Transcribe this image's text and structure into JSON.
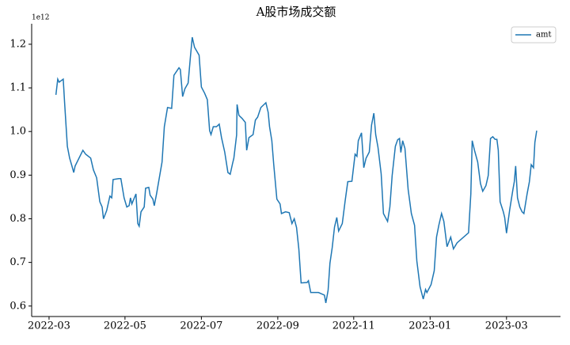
{
  "chart_data": {
    "type": "line",
    "title": "A股市场成交额",
    "y_offset_label": "1e12",
    "x": [
      2022.182,
      2022.186,
      2022.189,
      2022.198,
      2022.201,
      2022.207,
      2022.212,
      2022.217,
      2022.221,
      2022.224,
      2022.241,
      2022.247,
      2022.258,
      2022.264,
      2022.271,
      2022.278,
      2022.283,
      2022.286,
      2022.293,
      2022.3,
      2022.304,
      2022.307,
      2022.319,
      2022.324,
      2022.331,
      2022.337,
      2022.342,
      2022.345,
      2022.348,
      2022.357,
      2022.361,
      2022.364,
      2022.368,
      2022.375,
      2022.378,
      2022.385,
      2022.388,
      2022.394,
      2022.397,
      2022.402,
      2022.414,
      2022.419,
      2022.426,
      2022.435,
      2022.44,
      2022.451,
      2022.454,
      2022.459,
      2022.464,
      2022.471,
      2022.476,
      2022.48,
      2022.485,
      2022.495,
      2022.5,
      2022.507,
      2022.513,
      2022.518,
      2022.521,
      2022.526,
      2022.533,
      2022.539,
      2022.544,
      2022.551,
      2022.558,
      2022.563,
      2022.568,
      2022.571,
      2022.577,
      2022.578,
      2022.582,
      2022.589,
      2022.596,
      2022.599,
      2022.604,
      2022.613,
      2022.618,
      2022.623,
      2022.63,
      2022.635,
      2022.641,
      2022.646,
      2022.649,
      2022.654,
      2022.658,
      2022.665,
      2022.672,
      2022.675,
      2022.684,
      2022.692,
      2022.698,
      2022.703,
      2022.708,
      2022.713,
      2022.718,
      2022.731,
      2022.734,
      2022.739,
      2022.756,
      2022.769,
      2022.772,
      2022.777,
      2022.781,
      2022.786,
      2022.791,
      2022.796,
      2022.8,
      2022.808,
      2022.814,
      2022.82,
      2022.829,
      2022.836,
      2022.84,
      2022.843,
      2022.85,
      2022.855,
      2022.86,
      2022.867,
      2022.872,
      2022.877,
      2022.881,
      2022.886,
      2022.893,
      2022.898,
      2022.907,
      2022.912,
      2022.917,
      2022.924,
      2022.929,
      2022.933,
      2022.936,
      2022.94,
      2022.945,
      2022.952,
      2022.959,
      2022.966,
      2022.971,
      2022.978,
      2022.985,
      2022.99,
      2022.993,
      2023.002,
      2023.009,
      2023.014,
      2023.019,
      2023.025,
      2023.03,
      2023.037,
      2023.045,
      2023.051,
      2023.059,
      2023.084,
      2023.089,
      2023.092,
      2023.097,
      2023.104,
      2023.11,
      2023.115,
      2023.122,
      2023.127,
      2023.132,
      2023.137,
      2023.142,
      2023.146,
      2023.149,
      2023.153,
      2023.16,
      2023.163,
      2023.167,
      2023.174,
      2023.181,
      2023.184,
      2023.187,
      2023.191,
      2023.196,
      2023.201,
      2023.205,
      2023.212,
      2023.217,
      2023.221,
      2023.226,
      2023.229,
      2023.233
    ],
    "series": [
      {
        "name": "amt",
        "color": "#1f77b4",
        "values": [
          1.084,
          1.12,
          1.113,
          1.12,
          1.066,
          0.966,
          0.939,
          0.921,
          0.906,
          0.921,
          0.957,
          0.948,
          0.939,
          0.912,
          0.894,
          0.839,
          0.827,
          0.8,
          0.819,
          0.852,
          0.848,
          0.89,
          0.892,
          0.892,
          0.848,
          0.827,
          0.83,
          0.848,
          0.834,
          0.857,
          0.789,
          0.783,
          0.816,
          0.827,
          0.87,
          0.872,
          0.854,
          0.845,
          0.83,
          0.857,
          0.93,
          1.011,
          1.055,
          1.053,
          1.129,
          1.146,
          1.142,
          1.08,
          1.098,
          1.111,
          1.171,
          1.216,
          1.193,
          1.175,
          1.102,
          1.088,
          1.073,
          1.002,
          0.993,
          1.011,
          1.011,
          1.017,
          0.986,
          0.953,
          0.906,
          0.902,
          0.926,
          0.939,
          0.992,
          1.062,
          1.037,
          1.03,
          1.021,
          0.957,
          0.986,
          0.993,
          1.026,
          1.033,
          1.055,
          1.06,
          1.066,
          1.044,
          1.011,
          0.979,
          0.926,
          0.845,
          0.834,
          0.812,
          0.816,
          0.814,
          0.789,
          0.8,
          0.78,
          0.731,
          0.653,
          0.654,
          0.658,
          0.631,
          0.631,
          0.625,
          0.607,
          0.636,
          0.698,
          0.734,
          0.781,
          0.803,
          0.772,
          0.789,
          0.839,
          0.885,
          0.886,
          0.948,
          0.943,
          0.979,
          0.997,
          0.917,
          0.939,
          0.953,
          1.015,
          1.042,
          0.993,
          0.964,
          0.903,
          0.812,
          0.794,
          0.827,
          0.899,
          0.966,
          0.981,
          0.984,
          0.952,
          0.979,
          0.961,
          0.867,
          0.812,
          0.785,
          0.703,
          0.644,
          0.616,
          0.638,
          0.631,
          0.649,
          0.681,
          0.758,
          0.785,
          0.812,
          0.794,
          0.736,
          0.758,
          0.731,
          0.745,
          0.768,
          0.857,
          0.979,
          0.957,
          0.93,
          0.881,
          0.863,
          0.876,
          0.899,
          0.984,
          0.988,
          0.982,
          0.982,
          0.957,
          0.839,
          0.816,
          0.803,
          0.767,
          0.821,
          0.867,
          0.885,
          0.921,
          0.848,
          0.827,
          0.816,
          0.812,
          0.857,
          0.885,
          0.924,
          0.917,
          0.975,
          1.002
        ]
      }
    ],
    "xlim": [
      2022.129,
      2023.285
    ],
    "xticks": [
      {
        "value": 2022.167,
        "label": "2022-03"
      },
      {
        "value": 2022.333,
        "label": "2022-05"
      },
      {
        "value": 2022.5,
        "label": "2022-07"
      },
      {
        "value": 2022.667,
        "label": "2022-09"
      },
      {
        "value": 2022.833,
        "label": "2022-11"
      },
      {
        "value": 2023.0,
        "label": "2023-01"
      },
      {
        "value": 2023.167,
        "label": "2023-03"
      }
    ],
    "ylim": [
      0.576,
      1.247
    ],
    "yticks": [
      0.6,
      0.7,
      0.8,
      0.9,
      {
        "value": 1,
        "label": "1.0"
      },
      1.1,
      1.2
    ],
    "grid": false,
    "legend": "upper right"
  }
}
